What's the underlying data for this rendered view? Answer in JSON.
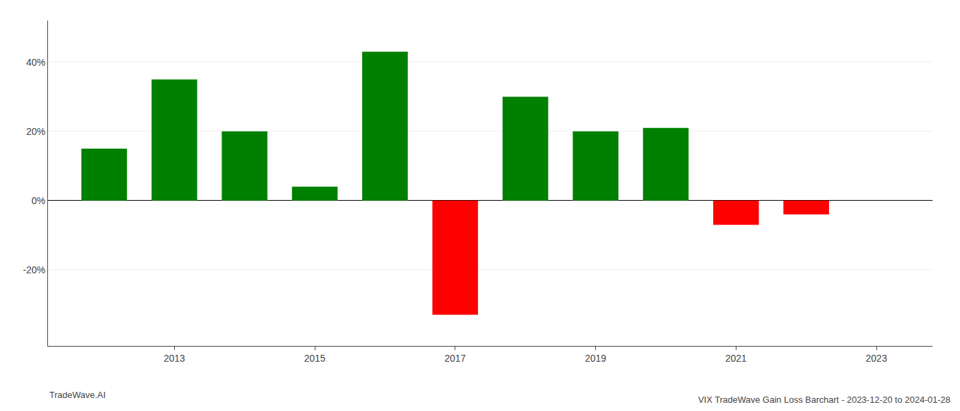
{
  "chart_data": {
    "type": "bar",
    "title": "VIX TradeWave Gain Loss Barchart - 2023-12-20 to 2024-01-28",
    "annotations": [
      "TradeWave.AI"
    ],
    "x": [
      2012,
      2013,
      2014,
      2015,
      2016,
      2017,
      2018,
      2019,
      2020,
      2021,
      2022
    ],
    "values": [
      0.15,
      0.35,
      0.2,
      0.04,
      0.43,
      -0.33,
      0.3,
      0.2,
      0.21,
      -0.07,
      -0.04
    ],
    "colors": [
      "#008000",
      "#008000",
      "#008000",
      "#008000",
      "#008000",
      "#ff0000",
      "#008000",
      "#008000",
      "#008000",
      "#ff0000",
      "#ff0000"
    ],
    "xlim": [
      2011.2,
      2023.8
    ],
    "xticks": [
      2013,
      2015,
      2017,
      2019,
      2021,
      2023
    ],
    "ylim": [
      -0.42,
      0.52
    ],
    "yticks": [
      {
        "value": -0.2,
        "label": "-20%"
      },
      {
        "value": 0.0,
        "label": "0%"
      },
      {
        "value": 0.2,
        "label": "20%"
      },
      {
        "value": 0.4,
        "label": "40%"
      }
    ],
    "grid": true
  }
}
